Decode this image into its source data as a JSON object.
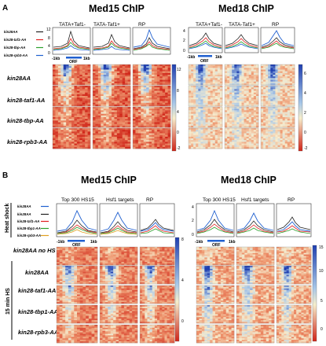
{
  "panelA": {
    "label": "A",
    "title_left": "Med15 ChIP",
    "title_right": "Med18 ChIP",
    "col_titles": [
      "TATA+Taf1-",
      "TATA-Taf1+",
      "RP"
    ],
    "legend": [
      "kin28AA",
      "kin28-taf1-AA",
      "kin28-tbp-AA",
      "kin28-rpb3-AA"
    ],
    "legend_colors": [
      "#222222",
      "#e02020",
      "#2ca02c",
      "#2060d0"
    ],
    "rows": [
      "kin28AA",
      "kin28-taf1-AA",
      "kin28-tbp-AA",
      "kin28-rpb3-AA"
    ],
    "xticks": [
      "-1kb",
      "ORF",
      "1kb"
    ],
    "left_yticks": [
      "12",
      "8",
      "4",
      "0"
    ],
    "left_cbar": [
      "12",
      "8",
      "4",
      "0",
      "-2"
    ],
    "right_yticks": [
      "4",
      "2",
      "0"
    ],
    "right_cbar": [
      "6",
      "4",
      "2",
      "0",
      "-2"
    ]
  },
  "panelB": {
    "label": "B",
    "title_left": "Med15 ChIP",
    "title_right": "Med18 ChIP",
    "col_titles": [
      "Top 300 HS15",
      "Hsf1 targets",
      "RP"
    ],
    "legend": [
      "kin28AA",
      "kin28AA",
      "kin28-taf1-AA",
      "kin28-tbp1-AA",
      "kin28-rpb3-AA"
    ],
    "legend_colors": [
      "#2060d0",
      "#222222",
      "#e02020",
      "#2ca02c",
      "#e0a020"
    ],
    "side_heat_shock": "Heat shock",
    "side_15min": "15 min HS",
    "row_noHS": "kin28AA no HS",
    "rows": [
      "kin28AA",
      "kin28-taf1-AA",
      "kin28-tbp1-AA",
      "kin28-rpb3-AA"
    ],
    "xticks": [
      "-1kb",
      "ORF",
      "1kb"
    ],
    "left_yticks": [
      "8",
      "6",
      "4",
      "2",
      "0"
    ],
    "left_cbar": [
      "8",
      "4",
      "0"
    ],
    "right_yticks": [
      "4",
      "2",
      "0"
    ],
    "right_cbar": [
      "15",
      "10",
      "5",
      "0"
    ]
  }
}
